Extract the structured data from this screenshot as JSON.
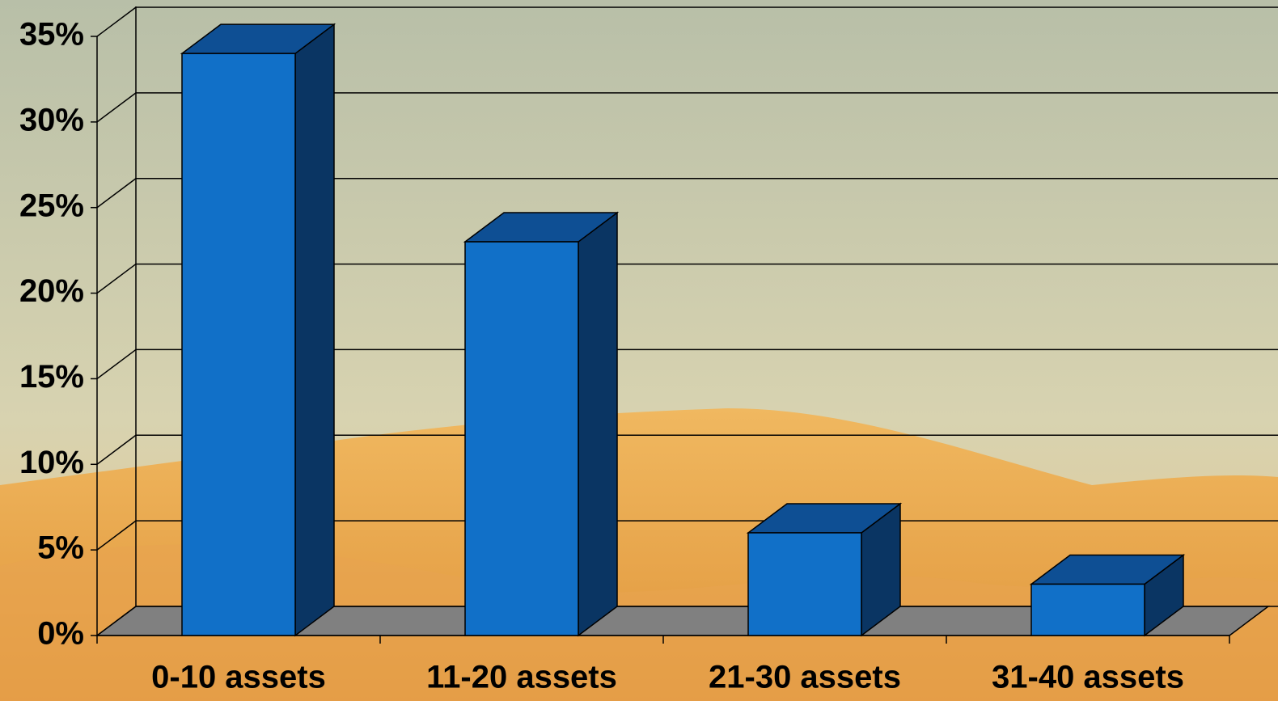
{
  "chart_data": {
    "type": "bar3d",
    "categories": [
      "0-10 assets",
      "11-20 assets",
      "21-30 assets",
      "31-40 assets"
    ],
    "values": [
      34,
      23,
      6,
      3
    ],
    "color": "#1170c8",
    "ylim": [
      0,
      35
    ],
    "yticks": [
      {
        "value": 0,
        "label": "0%"
      },
      {
        "value": 5,
        "label": "5%"
      },
      {
        "value": 10,
        "label": "10%"
      },
      {
        "value": 15,
        "label": "15%"
      },
      {
        "value": 20,
        "label": "20%"
      },
      {
        "value": 25,
        "label": "25%"
      },
      {
        "value": 30,
        "label": "30%"
      },
      {
        "value": 35,
        "label": "35%"
      }
    ],
    "grid": true
  }
}
